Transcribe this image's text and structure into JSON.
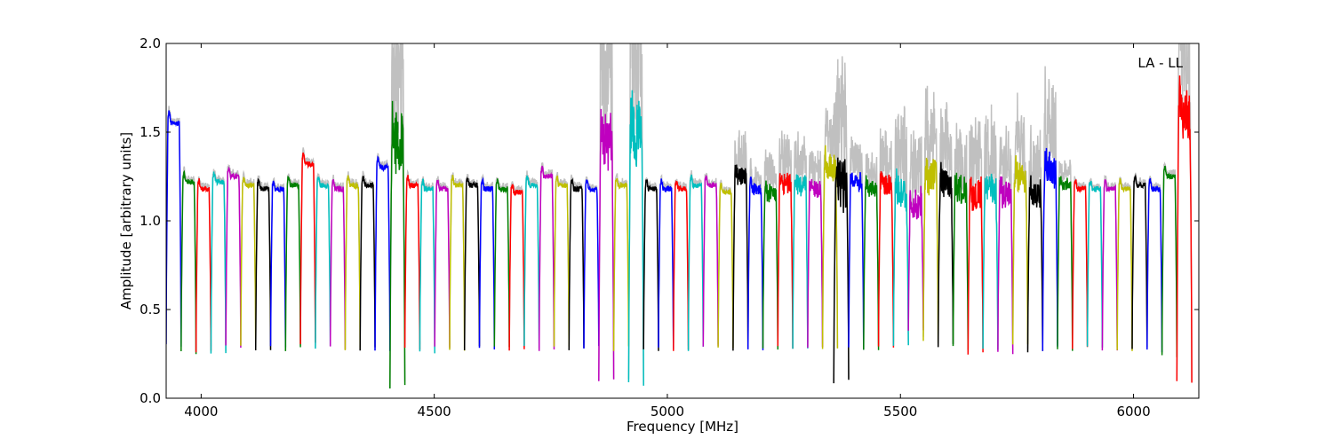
{
  "chart_data": {
    "type": "line",
    "title": "",
    "annotation": "LA - LL",
    "xlabel": "Frequency [MHz]",
    "ylabel": "Amplitude [arbitrary units]",
    "xlim": [
      3925,
      6140
    ],
    "ylim": [
      0.0,
      2.0
    ],
    "x_ticks": [
      4000,
      4500,
      5000,
      5500,
      6000
    ],
    "y_ticks": [
      0.0,
      0.5,
      1.0,
      1.5,
      2.0
    ],
    "x_tick_labels": [
      "4000",
      "4500",
      "5000",
      "5500",
      "6000"
    ],
    "y_tick_labels": [
      "0.0",
      "0.5",
      "1.0",
      "1.5",
      "2.0"
    ],
    "grid": false,
    "legend": "none",
    "color_cycle": [
      "#0000ff",
      "#008000",
      "#ff0000",
      "#00bfbf",
      "#bf00bf",
      "#bfbf00",
      "#000000"
    ],
    "raw_color": "#c0c0c0",
    "channel_width_mhz": 32,
    "series": [
      {
        "start": 3925,
        "color": "#0000ff",
        "level": 1.55,
        "min": 0.3
      },
      {
        "start": 3957,
        "color": "#008000",
        "level": 1.22,
        "min": 0.26
      },
      {
        "start": 3989,
        "color": "#ff0000",
        "level": 1.18,
        "min": 0.26
      },
      {
        "start": 4021,
        "color": "#00bfbf",
        "level": 1.22,
        "min": 0.26
      },
      {
        "start": 4053,
        "color": "#bf00bf",
        "level": 1.25,
        "min": 0.3
      },
      {
        "start": 4085,
        "color": "#bfbf00",
        "level": 1.2,
        "min": 0.3
      },
      {
        "start": 4117,
        "color": "#000000",
        "level": 1.18,
        "min": 0.28
      },
      {
        "start": 4149,
        "color": "#0000ff",
        "level": 1.18,
        "min": 0.28
      },
      {
        "start": 4181,
        "color": "#008000",
        "level": 1.2,
        "min": 0.28
      },
      {
        "start": 4213,
        "color": "#ff0000",
        "level": 1.32,
        "min": 0.3
      },
      {
        "start": 4245,
        "color": "#00bfbf",
        "level": 1.2,
        "min": 0.28
      },
      {
        "start": 4277,
        "color": "#bf00bf",
        "level": 1.18,
        "min": 0.28
      },
      {
        "start": 4309,
        "color": "#bfbf00",
        "level": 1.2,
        "min": 0.28
      },
      {
        "start": 4341,
        "color": "#000000",
        "level": 1.2,
        "min": 0.28
      },
      {
        "start": 4373,
        "color": "#0000ff",
        "level": 1.3,
        "min": 0.26
      },
      {
        "start": 4405,
        "color": "#008000",
        "level": 1.45,
        "min": 0.07,
        "noise": 0.35
      },
      {
        "start": 4437,
        "color": "#ff0000",
        "level": 1.2,
        "min": 0.28
      },
      {
        "start": 4469,
        "color": "#00bfbf",
        "level": 1.18,
        "min": 0.26
      },
      {
        "start": 4501,
        "color": "#bf00bf",
        "level": 1.18,
        "min": 0.28
      },
      {
        "start": 4533,
        "color": "#bfbf00",
        "level": 1.2,
        "min": 0.28
      },
      {
        "start": 4565,
        "color": "#000000",
        "level": 1.2,
        "min": 0.28
      },
      {
        "start": 4597,
        "color": "#0000ff",
        "level": 1.18,
        "min": 0.28
      },
      {
        "start": 4629,
        "color": "#008000",
        "level": 1.18,
        "min": 0.28
      },
      {
        "start": 4661,
        "color": "#ff0000",
        "level": 1.16,
        "min": 0.28
      },
      {
        "start": 4693,
        "color": "#00bfbf",
        "level": 1.2,
        "min": 0.28
      },
      {
        "start": 4725,
        "color": "#bf00bf",
        "level": 1.25,
        "min": 0.28
      },
      {
        "start": 4757,
        "color": "#bfbf00",
        "level": 1.2,
        "min": 0.28
      },
      {
        "start": 4789,
        "color": "#000000",
        "level": 1.18,
        "min": 0.28
      },
      {
        "start": 4821,
        "color": "#0000ff",
        "level": 1.18,
        "min": 0.28
      },
      {
        "start": 4853,
        "color": "#bf00bf",
        "level": 1.45,
        "min": 0.1,
        "noise": 0.35
      },
      {
        "start": 4885,
        "color": "#bfbf00",
        "level": 1.2,
        "min": 0.28
      },
      {
        "start": 4917,
        "color": "#00bfbf",
        "level": 1.5,
        "min": 0.08,
        "noise": 0.4
      },
      {
        "start": 4949,
        "color": "#000000",
        "level": 1.18,
        "min": 0.28
      },
      {
        "start": 4981,
        "color": "#0000ff",
        "level": 1.18,
        "min": 0.28
      },
      {
        "start": 5013,
        "color": "#ff0000",
        "level": 1.18,
        "min": 0.28
      },
      {
        "start": 5045,
        "color": "#00bfbf",
        "level": 1.2,
        "min": 0.28
      },
      {
        "start": 5077,
        "color": "#bf00bf",
        "level": 1.2,
        "min": 0.28
      },
      {
        "start": 5109,
        "color": "#bfbf00",
        "level": 1.16,
        "min": 0.28
      },
      {
        "start": 5141,
        "color": "#000000",
        "level": 1.25,
        "min": 0.28,
        "noise": 0.1
      },
      {
        "start": 5173,
        "color": "#0000ff",
        "level": 1.18,
        "min": 0.28,
        "noise": 0.05
      },
      {
        "start": 5205,
        "color": "#008000",
        "level": 1.15,
        "min": 0.28,
        "noise": 0.1
      },
      {
        "start": 5237,
        "color": "#ff0000",
        "level": 1.22,
        "min": 0.28,
        "noise": 0.12
      },
      {
        "start": 5269,
        "color": "#00bfbf",
        "level": 1.2,
        "min": 0.28,
        "noise": 0.12
      },
      {
        "start": 5301,
        "color": "#bf00bf",
        "level": 1.18,
        "min": 0.28,
        "noise": 0.1
      },
      {
        "start": 5333,
        "color": "#bfbf00",
        "level": 1.3,
        "min": 0.28,
        "noise": 0.15
      },
      {
        "start": 5357,
        "color": "#000000",
        "level": 1.2,
        "min": 0.09,
        "noise": 0.3
      },
      {
        "start": 5389,
        "color": "#0000ff",
        "level": 1.22,
        "min": 0.28,
        "noise": 0.1
      },
      {
        "start": 5421,
        "color": "#008000",
        "level": 1.18,
        "min": 0.28,
        "noise": 0.08
      },
      {
        "start": 5453,
        "color": "#ff0000",
        "level": 1.2,
        "min": 0.28,
        "noise": 0.12
      },
      {
        "start": 5485,
        "color": "#00bfbf",
        "level": 1.15,
        "min": 0.3,
        "noise": 0.2
      },
      {
        "start": 5517,
        "color": "#bf00bf",
        "level": 1.1,
        "min": 0.38,
        "noise": 0.18
      },
      {
        "start": 5549,
        "color": "#bfbf00",
        "level": 1.25,
        "min": 0.32,
        "noise": 0.2
      },
      {
        "start": 5581,
        "color": "#000000",
        "level": 1.2,
        "min": 0.3,
        "noise": 0.18
      },
      {
        "start": 5613,
        "color": "#008000",
        "level": 1.18,
        "min": 0.28,
        "noise": 0.15
      },
      {
        "start": 5645,
        "color": "#ff0000",
        "level": 1.15,
        "min": 0.25,
        "noise": 0.18
      },
      {
        "start": 5677,
        "color": "#00bfbf",
        "level": 1.18,
        "min": 0.28,
        "noise": 0.18
      },
      {
        "start": 5709,
        "color": "#bf00bf",
        "level": 1.15,
        "min": 0.26,
        "noise": 0.15
      },
      {
        "start": 5741,
        "color": "#bfbf00",
        "level": 1.25,
        "min": 0.3,
        "noise": 0.18
      },
      {
        "start": 5773,
        "color": "#000000",
        "level": 1.15,
        "min": 0.26,
        "noise": 0.15
      },
      {
        "start": 5805,
        "color": "#0000ff",
        "level": 1.3,
        "min": 0.28,
        "noise": 0.22
      },
      {
        "start": 5837,
        "color": "#008000",
        "level": 1.2,
        "min": 0.28,
        "noise": 0.06
      },
      {
        "start": 5869,
        "color": "#ff0000",
        "level": 1.18,
        "min": 0.28
      },
      {
        "start": 5901,
        "color": "#00bfbf",
        "level": 1.18,
        "min": 0.28
      },
      {
        "start": 5933,
        "color": "#bf00bf",
        "level": 1.18,
        "min": 0.28
      },
      {
        "start": 5965,
        "color": "#bfbf00",
        "level": 1.18,
        "min": 0.28
      },
      {
        "start": 5997,
        "color": "#000000",
        "level": 1.2,
        "min": 0.28
      },
      {
        "start": 6029,
        "color": "#0000ff",
        "level": 1.18,
        "min": 0.26
      },
      {
        "start": 6061,
        "color": "#008000",
        "level": 1.25,
        "min": 0.24
      },
      {
        "start": 6093,
        "color": "#ff0000",
        "level": 1.6,
        "min": 0.1,
        "noise": 0.3
      }
    ]
  }
}
